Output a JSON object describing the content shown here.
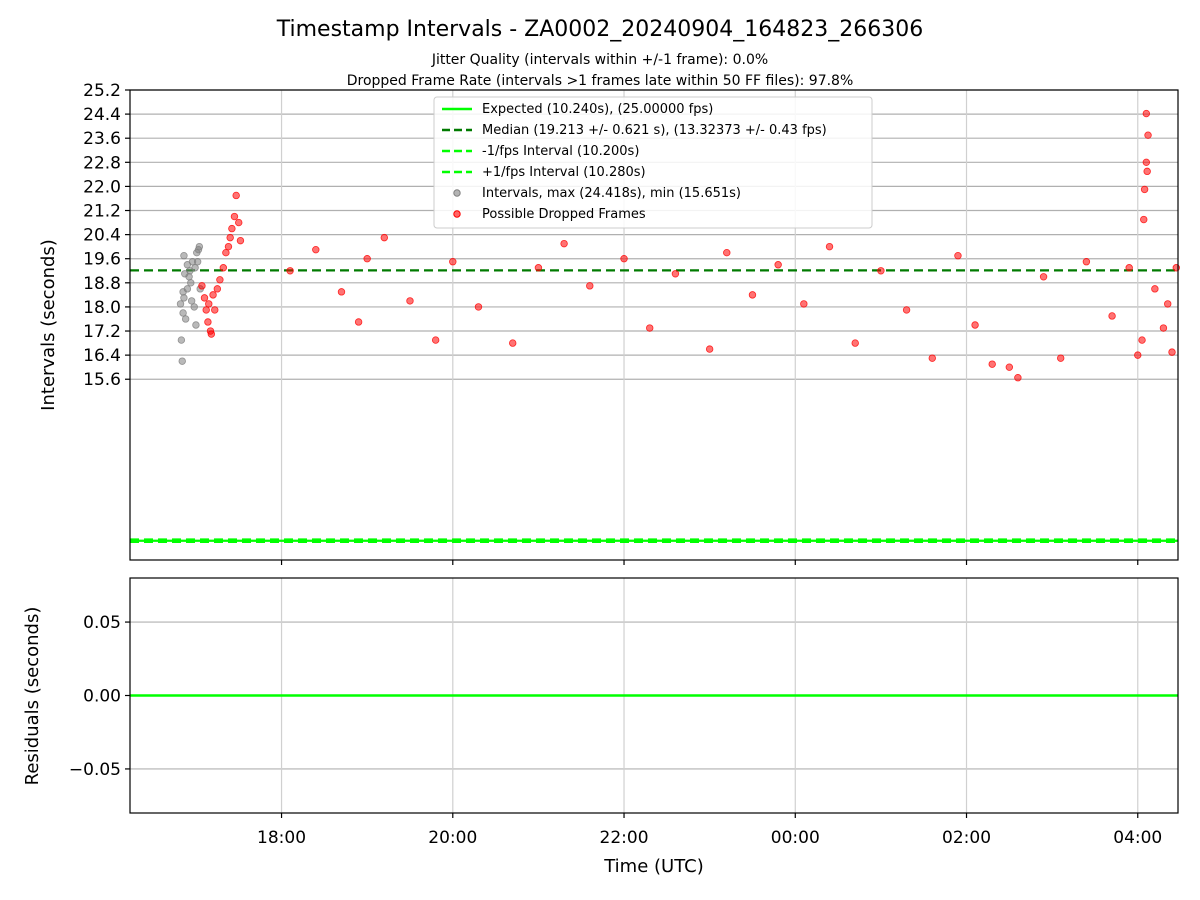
{
  "colors": {
    "expected": "#00ff00",
    "median": "#007a00",
    "interval_gray": "#808080",
    "dropped": "#ff0000",
    "grid": "#b0b0b0"
  },
  "chart_data": [
    {
      "type": "scatter",
      "title": "Timestamp Intervals - ZA0002_20240904_164823_266306",
      "subtitle_1": "Jitter Quality (intervals within +/-1 frame): 0.0%",
      "subtitle_2": "Dropped Frame Rate (intervals >1 frames late within 50 FF files): 97.8%",
      "ylabel": "Intervals (seconds)",
      "xlabel": "",
      "x_unit": "hours",
      "xlim": [
        16.23,
        28.47
      ],
      "ylim": [
        9.6,
        25.2
      ],
      "yticks": [
        {
          "v": 25.2,
          "label": "25.2"
        },
        {
          "v": 24.4,
          "label": "24.4"
        },
        {
          "v": 23.6,
          "label": "23.6"
        },
        {
          "v": 22.8,
          "label": "22.8"
        },
        {
          "v": 22.0,
          "label": "22.0"
        },
        {
          "v": 21.2,
          "label": "21.2"
        },
        {
          "v": 20.4,
          "label": "20.4"
        },
        {
          "v": 19.6,
          "label": "19.6"
        },
        {
          "v": 18.8,
          "label": "18.8"
        },
        {
          "v": 18.0,
          "label": "18.0"
        },
        {
          "v": 17.2,
          "label": "17.2"
        },
        {
          "v": 16.4,
          "label": "16.4"
        },
        {
          "v": 15.6,
          "label": "15.6"
        }
      ],
      "xticks": [
        {
          "v": 18,
          "label": "18:00"
        },
        {
          "v": 20,
          "label": "20:00"
        },
        {
          "v": 22,
          "label": "22:00"
        },
        {
          "v": 24,
          "label": "00:00"
        },
        {
          "v": 26,
          "label": "02:00"
        },
        {
          "v": 28,
          "label": "04:00"
        }
      ],
      "grid": true,
      "legend_position": "top-center",
      "legend": [
        {
          "label": "Expected (10.240s), (25.00000 fps)",
          "style": "solid",
          "color": "#00ff00"
        },
        {
          "label": "Median (19.213 +/- 0.621 s), (13.32373 +/- 0.43 fps)",
          "style": "dashed",
          "color": "#007a00"
        },
        {
          "label": "-1/fps Interval (10.200s)",
          "style": "dashed",
          "color": "#00ff00"
        },
        {
          "label": "+1/fps Interval (10.280s)",
          "style": "dashed",
          "color": "#00ff00"
        },
        {
          "label": "Intervals, max (24.418s), min (15.651s)",
          "style": "marker",
          "color": "#808080"
        },
        {
          "label": "Possible Dropped Frames",
          "style": "marker",
          "color": "#ff0000"
        }
      ],
      "reference_lines": {
        "expected": 10.24,
        "median": 19.213,
        "minus_one_fps": 10.2,
        "plus_one_fps": 10.28
      },
      "series": [
        {
          "name": "Intervals, max (24.418s), min (15.651s)",
          "color": "#808080",
          "points": [
            [
              16.84,
              16.2
            ],
            [
              16.83,
              16.9
            ],
            [
              16.85,
              17.8
            ],
            [
              16.86,
              18.3
            ],
            [
              16.85,
              18.5
            ],
            [
              16.87,
              19.1
            ],
            [
              16.86,
              19.7
            ],
            [
              16.9,
              19.4
            ],
            [
              16.9,
              18.6
            ],
            [
              16.92,
              19.0
            ],
            [
              16.93,
              19.2
            ],
            [
              16.95,
              18.2
            ],
            [
              16.96,
              19.5
            ],
            [
              16.98,
              18.0
            ],
            [
              16.99,
              19.3
            ],
            [
              17.01,
              19.8
            ],
            [
              17.02,
              19.5
            ],
            [
              17.04,
              20.0
            ],
            [
              17.05,
              18.6
            ],
            [
              16.82,
              18.1
            ],
            [
              16.88,
              17.6
            ],
            [
              16.94,
              18.8
            ],
            [
              17.0,
              17.4
            ],
            [
              17.03,
              19.9
            ]
          ]
        },
        {
          "name": "Possible Dropped Frames",
          "color": "#ff0000",
          "points": [
            [
              17.07,
              18.7
            ],
            [
              17.1,
              18.3
            ],
            [
              17.12,
              17.9
            ],
            [
              17.14,
              17.5
            ],
            [
              17.15,
              18.1
            ],
            [
              17.17,
              17.2
            ],
            [
              17.2,
              18.4
            ],
            [
              17.22,
              17.9
            ],
            [
              17.25,
              18.6
            ],
            [
              17.28,
              18.9
            ],
            [
              17.32,
              19.3
            ],
            [
              17.35,
              19.8
            ],
            [
              17.38,
              20.0
            ],
            [
              17.4,
              20.3
            ],
            [
              17.42,
              20.6
            ],
            [
              17.45,
              21.0
            ],
            [
              17.47,
              21.7
            ],
            [
              17.5,
              20.8
            ],
            [
              17.52,
              20.2
            ],
            [
              17.18,
              17.1
            ],
            [
              18.1,
              19.2
            ],
            [
              18.4,
              19.9
            ],
            [
              18.7,
              18.5
            ],
            [
              18.9,
              17.5
            ],
            [
              19.0,
              19.6
            ],
            [
              19.2,
              20.3
            ],
            [
              19.5,
              18.2
            ],
            [
              19.8,
              16.9
            ],
            [
              20.0,
              19.5
            ],
            [
              20.3,
              18.0
            ],
            [
              20.7,
              16.8
            ],
            [
              21.0,
              19.3
            ],
            [
              21.3,
              20.1
            ],
            [
              21.6,
              18.7
            ],
            [
              22.0,
              19.6
            ],
            [
              22.3,
              17.3
            ],
            [
              22.6,
              19.1
            ],
            [
              23.0,
              16.6
            ],
            [
              23.2,
              19.8
            ],
            [
              23.5,
              18.4
            ],
            [
              23.8,
              19.4
            ],
            [
              24.1,
              18.1
            ],
            [
              24.4,
              20.0
            ],
            [
              24.7,
              16.8
            ],
            [
              25.0,
              19.2
            ],
            [
              25.3,
              17.9
            ],
            [
              25.6,
              16.3
            ],
            [
              25.9,
              19.7
            ],
            [
              26.1,
              17.4
            ],
            [
              26.3,
              16.1
            ],
            [
              26.5,
              16.0
            ],
            [
              26.6,
              15.65
            ],
            [
              26.9,
              19.0
            ],
            [
              27.1,
              16.3
            ],
            [
              27.4,
              19.5
            ],
            [
              27.7,
              17.7
            ],
            [
              27.9,
              19.3
            ],
            [
              28.0,
              16.4
            ],
            [
              28.05,
              16.9
            ],
            [
              28.1,
              24.418
            ],
            [
              28.12,
              23.7
            ],
            [
              28.1,
              22.8
            ],
            [
              28.11,
              22.5
            ],
            [
              28.08,
              21.9
            ],
            [
              28.07,
              20.9
            ],
            [
              28.2,
              18.6
            ],
            [
              28.3,
              17.3
            ],
            [
              28.4,
              16.5
            ],
            [
              28.45,
              19.3
            ],
            [
              28.35,
              18.1
            ]
          ]
        }
      ]
    },
    {
      "type": "line",
      "title": "",
      "ylabel": "Residuals (seconds)",
      "xlabel": "Time (UTC)",
      "xlim": [
        16.23,
        28.47
      ],
      "ylim": [
        -0.08,
        0.08
      ],
      "yticks": [
        {
          "v": 0.05,
          "label": "0.05"
        },
        {
          "v": 0.0,
          "label": "0.00"
        },
        {
          "v": -0.05,
          "label": "−0.05"
        }
      ],
      "xticks": [
        {
          "v": 18,
          "label": "18:00"
        },
        {
          "v": 20,
          "label": "20:00"
        },
        {
          "v": 22,
          "label": "22:00"
        },
        {
          "v": 24,
          "label": "00:00"
        },
        {
          "v": 26,
          "label": "02:00"
        },
        {
          "v": 28,
          "label": "04:00"
        }
      ],
      "grid": true,
      "series": [
        {
          "color": "#00ff00",
          "x": [
            16.23,
            28.47
          ],
          "values": [
            0.0,
            0.0
          ]
        }
      ]
    }
  ]
}
